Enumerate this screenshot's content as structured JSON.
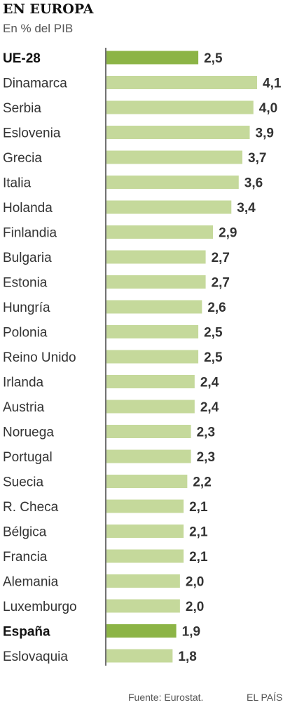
{
  "header": {
    "title": "EN EUROPA",
    "subtitle": "En % del PIB"
  },
  "footer": {
    "source": "Fuente: Eurostat.",
    "brand": "EL PAÍS"
  },
  "colors": {
    "bar": "#c5d99b",
    "highlight_bar": "#8cb446",
    "axis": "#444444",
    "label": "#333333",
    "value": "#333333"
  },
  "chart_data": {
    "type": "bar",
    "orientation": "horizontal",
    "categories": [
      "UE-28",
      "Dinamarca",
      "Serbia",
      "Eslovenia",
      "Grecia",
      "Italia",
      "Holanda",
      "Finlandia",
      "Bulgaria",
      "Estonia",
      "Hungría",
      "Polonia",
      "Reino Unido",
      "Irlanda",
      "Austria",
      "Noruega",
      "Portugal",
      "Suecia",
      "R. Checa",
      "Bélgica",
      "Francia",
      "Alemania",
      "Luxemburgo",
      "España",
      "Eslovaquia"
    ],
    "values": [
      2.5,
      4.1,
      4.0,
      3.9,
      3.7,
      3.6,
      3.4,
      2.9,
      2.7,
      2.7,
      2.6,
      2.5,
      2.5,
      2.4,
      2.4,
      2.3,
      2.3,
      2.2,
      2.1,
      2.1,
      2.1,
      2.0,
      2.0,
      1.9,
      1.8
    ],
    "value_labels": [
      "2,5",
      "4,1",
      "4,0",
      "3,9",
      "3,7",
      "3,6",
      "3,4",
      "2,9",
      "2,7",
      "2,7",
      "2,6",
      "2,5",
      "2,5",
      "2,4",
      "2,4",
      "2,3",
      "2,3",
      "2,2",
      "2,1",
      "2,1",
      "2,1",
      "2,0",
      "2,0",
      "1,9",
      "1,8"
    ],
    "highlighted": [
      "UE-28",
      "España"
    ],
    "title": "EN EUROPA",
    "subtitle": "En % del PIB",
    "xlim": [
      0,
      4.1
    ],
    "grid": false,
    "legend": "none"
  }
}
